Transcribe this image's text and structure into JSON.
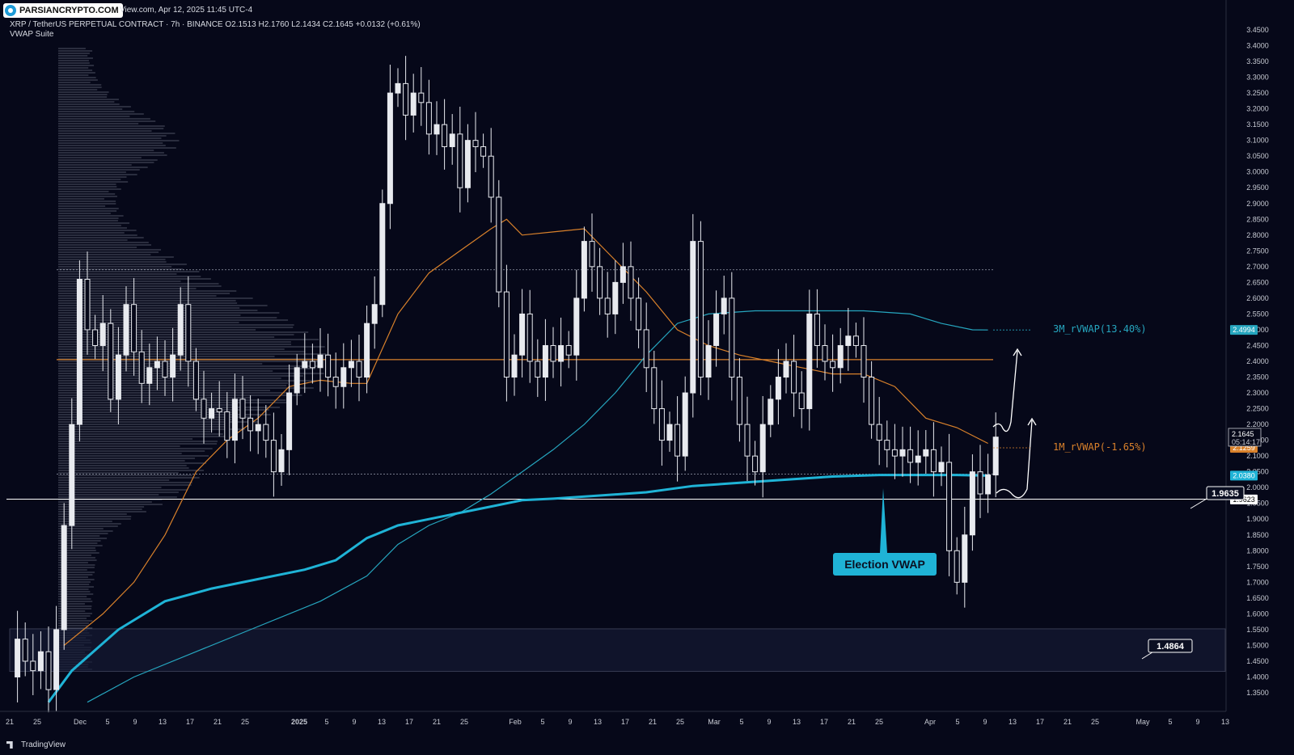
{
  "header": {
    "source_line": "View.com, Apr 12, 2025 11:45 UTC-4",
    "symbol_line": "XRP / TetherUS PERPETUAL CONTRACT · 7h · BINANCE   O2.1513   H2.1760   L2.1434   C2.1645   +0.0132 (+0.61%)",
    "indicator": "VWAP Suite"
  },
  "watermark": {
    "text": "PARSIANCRYPTO.COM",
    "icon": "parsiancrypto-logo-icon"
  },
  "footer": {
    "brand": "TradingView",
    "icon": "tradingview-logo-icon"
  },
  "colors": {
    "background": "#060819",
    "candle": "#e8eaef",
    "orange_vwap": "#d9812b",
    "cyan_election": "#1fb3d6",
    "teal_3m": "#26a6bf",
    "profile": "#8a8f9e"
  },
  "chart_data": {
    "type": "candlestick",
    "title": "XRP / TetherUS PERPETUAL CONTRACT",
    "timeframe": "7h",
    "exchange": "BINANCE",
    "ohlc": {
      "open": 2.1513,
      "high": 2.176,
      "low": 2.1434,
      "close": 2.1645,
      "change": "+0.0132 (+0.61%)"
    },
    "ylim": [
      1.3,
      3.5
    ],
    "y_ticks": [
      "3.4500",
      "3.4000",
      "3.3500",
      "3.3000",
      "3.2500",
      "3.2000",
      "3.1500",
      "3.1000",
      "3.0500",
      "3.0000",
      "2.9500",
      "2.9000",
      "2.8500",
      "2.8000",
      "2.7500",
      "2.7000",
      "2.6500",
      "2.6000",
      "2.5500",
      "2.5000",
      "2.4500",
      "2.4000",
      "2.3500",
      "2.3000",
      "2.2500",
      "2.2000",
      "2.1500",
      "2.1000",
      "2.0500",
      "2.0000",
      "1.9500",
      "1.9000",
      "1.8500",
      "1.8000",
      "1.7500",
      "1.7000",
      "1.6500",
      "1.6000",
      "1.5500",
      "1.5000",
      "1.4500",
      "1.4000",
      "1.3500"
    ],
    "x_ticks": [
      "21",
      "25",
      "Dec",
      "5",
      "9",
      "13",
      "17",
      "21",
      "25",
      "2025",
      "5",
      "9",
      "13",
      "17",
      "21",
      "25",
      "Feb",
      "5",
      "9",
      "13",
      "17",
      "21",
      "25",
      "Mar",
      "5",
      "9",
      "13",
      "17",
      "21",
      "25",
      "Apr",
      "5",
      "9",
      "13",
      "17",
      "21",
      "25",
      "May",
      "5",
      "9",
      "13"
    ],
    "price_path": [
      [
        0,
        1.4
      ],
      [
        1,
        1.52
      ],
      [
        2,
        1.45
      ],
      [
        3,
        1.42
      ],
      [
        4,
        1.48
      ],
      [
        5,
        1.36
      ],
      [
        6,
        1.55
      ],
      [
        7,
        1.88
      ],
      [
        8,
        2.2
      ],
      [
        9,
        2.66
      ],
      [
        10,
        2.5
      ],
      [
        11,
        2.45
      ],
      [
        12,
        2.52
      ],
      [
        13,
        2.28
      ],
      [
        14,
        2.42
      ],
      [
        15,
        2.58
      ],
      [
        16,
        2.43
      ],
      [
        17,
        2.33
      ],
      [
        18,
        2.38
      ],
      [
        19,
        2.4
      ],
      [
        20,
        2.35
      ],
      [
        21,
        2.42
      ],
      [
        22,
        2.58
      ],
      [
        23,
        2.4
      ],
      [
        24,
        2.28
      ],
      [
        25,
        2.22
      ],
      [
        26,
        2.25
      ],
      [
        27,
        2.24
      ],
      [
        28,
        2.15
      ],
      [
        29,
        2.28
      ],
      [
        30,
        2.22
      ],
      [
        31,
        2.18
      ],
      [
        32,
        2.2
      ],
      [
        33,
        2.15
      ],
      [
        34,
        2.05
      ],
      [
        35,
        2.12
      ],
      [
        36,
        2.3
      ],
      [
        37,
        2.38
      ],
      [
        38,
        2.4
      ],
      [
        39,
        2.38
      ],
      [
        40,
        2.42
      ],
      [
        41,
        2.35
      ],
      [
        42,
        2.32
      ],
      [
        43,
        2.38
      ],
      [
        44,
        2.4
      ],
      [
        45,
        2.35
      ],
      [
        46,
        2.52
      ],
      [
        47,
        2.58
      ],
      [
        48,
        2.9
      ],
      [
        49,
        3.25
      ],
      [
        50,
        3.28
      ],
      [
        51,
        3.18
      ],
      [
        52,
        3.25
      ],
      [
        53,
        3.22
      ],
      [
        54,
        3.12
      ],
      [
        55,
        3.15
      ],
      [
        56,
        3.08
      ],
      [
        57,
        3.12
      ],
      [
        58,
        2.95
      ],
      [
        59,
        3.1
      ],
      [
        60,
        3.08
      ],
      [
        61,
        3.05
      ],
      [
        62,
        2.92
      ],
      [
        63,
        2.62
      ],
      [
        64,
        2.35
      ],
      [
        65,
        2.42
      ],
      [
        66,
        2.55
      ],
      [
        67,
        2.4
      ],
      [
        68,
        2.35
      ],
      [
        69,
        2.45
      ],
      [
        70,
        2.4
      ],
      [
        71,
        2.45
      ],
      [
        72,
        2.42
      ],
      [
        73,
        2.6
      ],
      [
        74,
        2.78
      ],
      [
        75,
        2.7
      ],
      [
        76,
        2.6
      ],
      [
        77,
        2.55
      ],
      [
        78,
        2.65
      ],
      [
        79,
        2.7
      ],
      [
        80,
        2.6
      ],
      [
        81,
        2.5
      ],
      [
        82,
        2.38
      ],
      [
        83,
        2.25
      ],
      [
        84,
        2.15
      ],
      [
        85,
        2.2
      ],
      [
        86,
        2.1
      ],
      [
        87,
        2.3
      ],
      [
        88,
        2.78
      ],
      [
        89,
        2.35
      ],
      [
        90,
        2.45
      ],
      [
        91,
        2.55
      ],
      [
        92,
        2.6
      ],
      [
        93,
        2.35
      ],
      [
        94,
        2.2
      ],
      [
        95,
        2.1
      ],
      [
        96,
        2.05
      ],
      [
        97,
        2.2
      ],
      [
        98,
        2.28
      ],
      [
        99,
        2.35
      ],
      [
        100,
        2.4
      ],
      [
        101,
        2.3
      ],
      [
        102,
        2.25
      ],
      [
        103,
        2.55
      ],
      [
        104,
        2.45
      ],
      [
        105,
        2.4
      ],
      [
        106,
        2.38
      ],
      [
        107,
        2.45
      ],
      [
        108,
        2.48
      ],
      [
        109,
        2.45
      ],
      [
        110,
        2.35
      ],
      [
        111,
        2.2
      ],
      [
        112,
        2.15
      ],
      [
        113,
        2.12
      ],
      [
        114,
        2.1
      ],
      [
        115,
        2.12
      ],
      [
        116,
        2.08
      ],
      [
        117,
        2.1
      ],
      [
        118,
        2.12
      ],
      [
        119,
        2.05
      ],
      [
        120,
        2.08
      ],
      [
        121,
        1.8
      ],
      [
        122,
        1.7
      ],
      [
        123,
        1.85
      ],
      [
        124,
        2.05
      ],
      [
        125,
        1.98
      ],
      [
        126,
        2.04
      ],
      [
        127,
        2.16
      ]
    ],
    "x_domain": [
      0,
      148
    ],
    "election_vwap": [
      [
        5,
        1.32
      ],
      [
        8,
        1.42
      ],
      [
        14,
        1.55
      ],
      [
        20,
        1.64
      ],
      [
        26,
        1.68
      ],
      [
        32,
        1.71
      ],
      [
        38,
        1.74
      ],
      [
        42,
        1.77
      ],
      [
        46,
        1.84
      ],
      [
        50,
        1.88
      ],
      [
        54,
        1.9
      ],
      [
        58,
        1.92
      ],
      [
        62,
        1.94
      ],
      [
        66,
        1.96
      ],
      [
        70,
        1.965
      ],
      [
        76,
        1.975
      ],
      [
        82,
        1.985
      ],
      [
        88,
        2.005
      ],
      [
        94,
        2.015
      ],
      [
        100,
        2.025
      ],
      [
        106,
        2.035
      ],
      [
        112,
        2.04
      ],
      [
        118,
        2.04
      ],
      [
        122,
        2.04
      ],
      [
        126,
        2.038
      ]
    ],
    "vwap_3m": [
      [
        10,
        1.32
      ],
      [
        16,
        1.4
      ],
      [
        24,
        1.48
      ],
      [
        32,
        1.56
      ],
      [
        40,
        1.64
      ],
      [
        46,
        1.72
      ],
      [
        50,
        1.82
      ],
      [
        54,
        1.88
      ],
      [
        58,
        1.92
      ],
      [
        62,
        1.98
      ],
      [
        66,
        2.05
      ],
      [
        70,
        2.12
      ],
      [
        74,
        2.2
      ],
      [
        78,
        2.3
      ],
      [
        82,
        2.42
      ],
      [
        86,
        2.52
      ],
      [
        90,
        2.55
      ],
      [
        96,
        2.56
      ],
      [
        102,
        2.56
      ],
      [
        110,
        2.56
      ],
      [
        116,
        2.55
      ],
      [
        120,
        2.52
      ],
      [
        124,
        2.5
      ],
      [
        126,
        2.4994
      ]
    ],
    "vwap_1m": [
      [
        7,
        1.5
      ],
      [
        12,
        1.6
      ],
      [
        16,
        1.7
      ],
      [
        20,
        1.85
      ],
      [
        24,
        2.05
      ],
      [
        28,
        2.15
      ],
      [
        32,
        2.22
      ],
      [
        36,
        2.32
      ],
      [
        40,
        2.34
      ],
      [
        44,
        2.33
      ],
      [
        46,
        2.33
      ],
      [
        50,
        2.55
      ],
      [
        54,
        2.68
      ],
      [
        58,
        2.75
      ],
      [
        62,
        2.82
      ],
      [
        64,
        2.85
      ],
      [
        66,
        2.8
      ],
      [
        70,
        2.81
      ],
      [
        74,
        2.82
      ],
      [
        78,
        2.72
      ],
      [
        82,
        2.62
      ],
      [
        86,
        2.5
      ],
      [
        90,
        2.45
      ],
      [
        94,
        2.42
      ],
      [
        98,
        2.4
      ],
      [
        102,
        2.38
      ],
      [
        106,
        2.36
      ],
      [
        110,
        2.36
      ],
      [
        114,
        2.32
      ],
      [
        118,
        2.22
      ],
      [
        122,
        2.19
      ],
      [
        126,
        2.14
      ]
    ],
    "horizontal_levels": {
      "orange_line": 2.4055,
      "white_line": 1.9635,
      "dotted_top": 2.69,
      "dotted_mid": 2.0425,
      "box_top": 1.5525,
      "box_bottom": 1.4175
    },
    "price_labels": {
      "current_price": "2.1645",
      "countdown": "05:14:17",
      "orange_label": "2.1259",
      "cyan_label": "2.0380",
      "teal_label": "2.4994",
      "white_label": "1.9623"
    },
    "annotations": {
      "vwap_3m": "3M_rVWAP(13.40%)",
      "vwap_1m": "1M_rVWAP(-1.65%)",
      "election": "Election VWAP",
      "level_1": "1.9635",
      "level_2": "1.4864"
    }
  }
}
